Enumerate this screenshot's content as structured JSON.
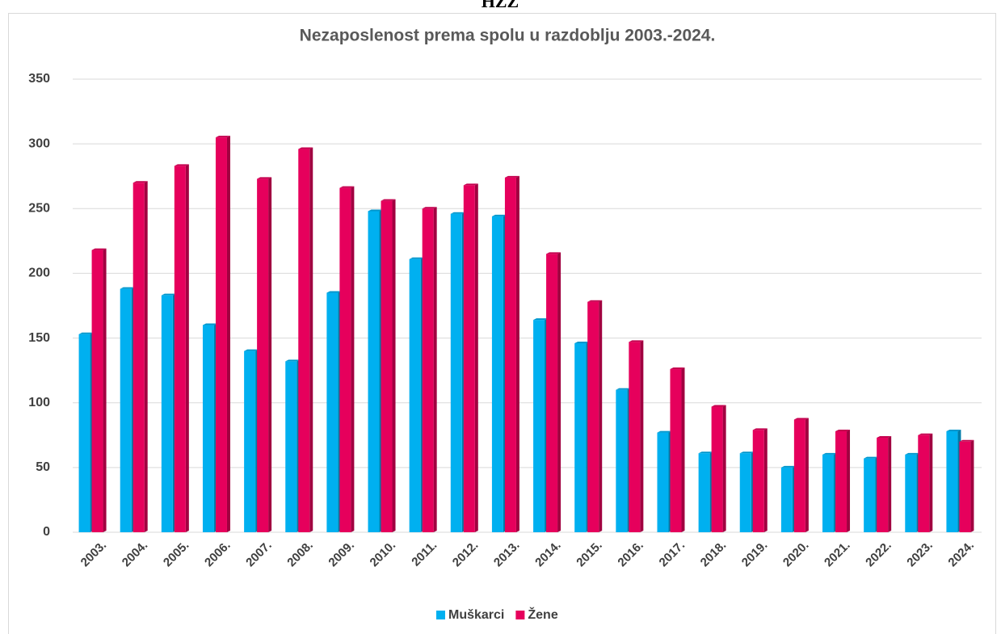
{
  "header": "HZZ",
  "chart_data": {
    "type": "bar",
    "title": "Nezaposlenost prema spolu u razdoblju 2003.-2024.",
    "categories": [
      "2003.",
      "2004.",
      "2005.",
      "2006.",
      "2007.",
      "2008.",
      "2009.",
      "2010.",
      "2011.",
      "2012.",
      "2013.",
      "2014.",
      "2015.",
      "2016.",
      "2017.",
      "2018.",
      "2019.",
      "2020.",
      "2021.",
      "2022.",
      "2023.",
      "2024."
    ],
    "series": [
      {
        "name": "Muškarci",
        "color": "#00b0f0",
        "values": [
          153,
          188,
          183,
          160,
          140,
          132,
          185,
          248,
          211,
          246,
          244,
          164,
          146,
          110,
          77,
          61,
          61,
          50,
          60,
          57,
          60,
          78
        ]
      },
      {
        "name": "Žene",
        "color": "#e6005c",
        "values": [
          218,
          270,
          283,
          305,
          273,
          296,
          266,
          256,
          250,
          268,
          274,
          215,
          178,
          147,
          126,
          97,
          79,
          87,
          78,
          73,
          75,
          70
        ]
      }
    ],
    "ylim": [
      0,
      350
    ],
    "yticks": [
      0,
      50,
      100,
      150,
      200,
      250,
      300,
      350
    ],
    "grid": true,
    "legend": "bottom"
  }
}
